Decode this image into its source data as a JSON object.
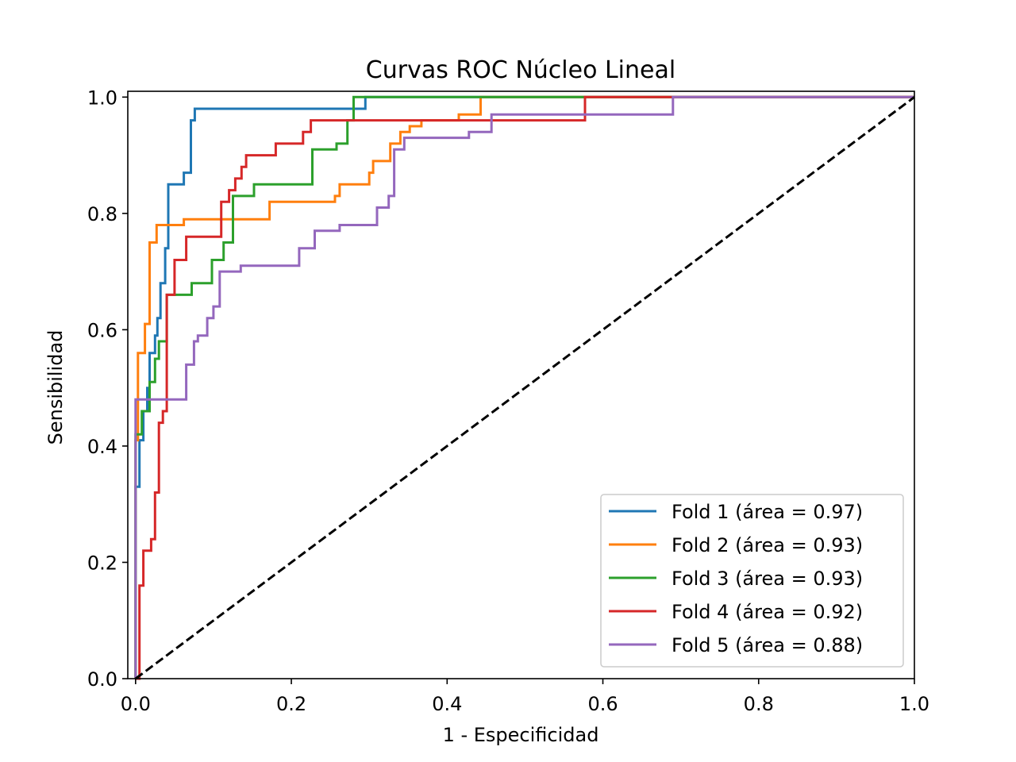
{
  "chart_data": {
    "type": "line",
    "title": "Curvas ROC Núcleo Lineal",
    "xlabel": "1 - Especificidad",
    "ylabel": "Sensibilidad",
    "xlim": [
      -0.01,
      1.0
    ],
    "ylim": [
      0.0,
      1.01
    ],
    "xticks": [
      0.0,
      0.2,
      0.4,
      0.6,
      0.8,
      1.0
    ],
    "yticks": [
      0.0,
      0.2,
      0.4,
      0.6,
      0.8,
      1.0
    ],
    "xtick_labels": [
      "0.0",
      "0.2",
      "0.4",
      "0.6",
      "0.8",
      "1.0"
    ],
    "ytick_labels": [
      "0.0",
      "0.2",
      "0.4",
      "0.6",
      "0.8",
      "1.0"
    ],
    "grid": false,
    "legend_position": "lower-right",
    "diagonal": {
      "points": [
        [
          0,
          0
        ],
        [
          1,
          1
        ]
      ],
      "color": "#000000",
      "style": "dashed"
    },
    "series": [
      {
        "name": "Fold 1 (área = 0.97)",
        "color": "#1f77b4",
        "points": [
          [
            0.0,
            0.0
          ],
          [
            0.0,
            0.33
          ],
          [
            0.005,
            0.33
          ],
          [
            0.005,
            0.41
          ],
          [
            0.01,
            0.41
          ],
          [
            0.01,
            0.46
          ],
          [
            0.015,
            0.46
          ],
          [
            0.015,
            0.5
          ],
          [
            0.018,
            0.5
          ],
          [
            0.018,
            0.56
          ],
          [
            0.025,
            0.56
          ],
          [
            0.025,
            0.59
          ],
          [
            0.028,
            0.59
          ],
          [
            0.028,
            0.62
          ],
          [
            0.032,
            0.62
          ],
          [
            0.032,
            0.68
          ],
          [
            0.038,
            0.68
          ],
          [
            0.038,
            0.74
          ],
          [
            0.042,
            0.74
          ],
          [
            0.042,
            0.85
          ],
          [
            0.062,
            0.85
          ],
          [
            0.062,
            0.87
          ],
          [
            0.071,
            0.87
          ],
          [
            0.071,
            0.96
          ],
          [
            0.076,
            0.96
          ],
          [
            0.076,
            0.98
          ],
          [
            0.295,
            0.98
          ],
          [
            0.295,
            1.0
          ],
          [
            1.0,
            1.0
          ]
        ]
      },
      {
        "name": "Fold 2 (área = 0.93)",
        "color": "#ff7f0e",
        "points": [
          [
            0.0,
            0.0
          ],
          [
            0.0,
            0.41
          ],
          [
            0.003,
            0.41
          ],
          [
            0.003,
            0.56
          ],
          [
            0.012,
            0.56
          ],
          [
            0.012,
            0.61
          ],
          [
            0.018,
            0.61
          ],
          [
            0.018,
            0.75
          ],
          [
            0.027,
            0.75
          ],
          [
            0.027,
            0.78
          ],
          [
            0.062,
            0.78
          ],
          [
            0.062,
            0.79
          ],
          [
            0.172,
            0.79
          ],
          [
            0.172,
            0.82
          ],
          [
            0.256,
            0.82
          ],
          [
            0.256,
            0.83
          ],
          [
            0.262,
            0.83
          ],
          [
            0.262,
            0.85
          ],
          [
            0.3,
            0.85
          ],
          [
            0.3,
            0.87
          ],
          [
            0.305,
            0.87
          ],
          [
            0.305,
            0.89
          ],
          [
            0.327,
            0.89
          ],
          [
            0.327,
            0.92
          ],
          [
            0.34,
            0.92
          ],
          [
            0.34,
            0.94
          ],
          [
            0.352,
            0.94
          ],
          [
            0.352,
            0.95
          ],
          [
            0.367,
            0.95
          ],
          [
            0.367,
            0.96
          ],
          [
            0.415,
            0.96
          ],
          [
            0.415,
            0.97
          ],
          [
            0.443,
            0.97
          ],
          [
            0.443,
            1.0
          ],
          [
            1.0,
            1.0
          ]
        ]
      },
      {
        "name": "Fold 3 (área = 0.93)",
        "color": "#2ca02c",
        "points": [
          [
            0.0,
            0.0
          ],
          [
            0.0,
            0.42
          ],
          [
            0.008,
            0.42
          ],
          [
            0.008,
            0.46
          ],
          [
            0.018,
            0.46
          ],
          [
            0.018,
            0.51
          ],
          [
            0.025,
            0.51
          ],
          [
            0.025,
            0.55
          ],
          [
            0.03,
            0.55
          ],
          [
            0.03,
            0.58
          ],
          [
            0.04,
            0.58
          ],
          [
            0.04,
            0.66
          ],
          [
            0.072,
            0.66
          ],
          [
            0.072,
            0.68
          ],
          [
            0.098,
            0.68
          ],
          [
            0.098,
            0.72
          ],
          [
            0.113,
            0.72
          ],
          [
            0.113,
            0.75
          ],
          [
            0.125,
            0.75
          ],
          [
            0.125,
            0.83
          ],
          [
            0.152,
            0.83
          ],
          [
            0.152,
            0.85
          ],
          [
            0.227,
            0.85
          ],
          [
            0.227,
            0.91
          ],
          [
            0.258,
            0.91
          ],
          [
            0.258,
            0.92
          ],
          [
            0.272,
            0.92
          ],
          [
            0.272,
            0.96
          ],
          [
            0.28,
            0.96
          ],
          [
            0.28,
            1.0
          ],
          [
            1.0,
            1.0
          ]
        ]
      },
      {
        "name": "Fold 4 (área = 0.92)",
        "color": "#d62728",
        "points": [
          [
            0.0,
            0.0
          ],
          [
            0.005,
            0.0
          ],
          [
            0.005,
            0.16
          ],
          [
            0.01,
            0.16
          ],
          [
            0.01,
            0.22
          ],
          [
            0.02,
            0.22
          ],
          [
            0.02,
            0.24
          ],
          [
            0.025,
            0.24
          ],
          [
            0.025,
            0.32
          ],
          [
            0.03,
            0.32
          ],
          [
            0.03,
            0.44
          ],
          [
            0.035,
            0.44
          ],
          [
            0.035,
            0.46
          ],
          [
            0.04,
            0.46
          ],
          [
            0.04,
            0.66
          ],
          [
            0.05,
            0.66
          ],
          [
            0.05,
            0.72
          ],
          [
            0.065,
            0.72
          ],
          [
            0.065,
            0.76
          ],
          [
            0.11,
            0.76
          ],
          [
            0.11,
            0.82
          ],
          [
            0.12,
            0.82
          ],
          [
            0.12,
            0.84
          ],
          [
            0.128,
            0.84
          ],
          [
            0.128,
            0.86
          ],
          [
            0.136,
            0.86
          ],
          [
            0.136,
            0.88
          ],
          [
            0.142,
            0.88
          ],
          [
            0.142,
            0.9
          ],
          [
            0.18,
            0.9
          ],
          [
            0.18,
            0.92
          ],
          [
            0.215,
            0.92
          ],
          [
            0.215,
            0.94
          ],
          [
            0.225,
            0.94
          ],
          [
            0.225,
            0.96
          ],
          [
            0.577,
            0.96
          ],
          [
            0.577,
            1.0
          ],
          [
            1.0,
            1.0
          ]
        ]
      },
      {
        "name": "Fold 5 (área = 0.88)",
        "color": "#9467bd",
        "points": [
          [
            0.0,
            0.0
          ],
          [
            0.0,
            0.48
          ],
          [
            0.065,
            0.48
          ],
          [
            0.065,
            0.54
          ],
          [
            0.075,
            0.54
          ],
          [
            0.075,
            0.58
          ],
          [
            0.08,
            0.58
          ],
          [
            0.08,
            0.59
          ],
          [
            0.092,
            0.59
          ],
          [
            0.092,
            0.62
          ],
          [
            0.1,
            0.62
          ],
          [
            0.1,
            0.64
          ],
          [
            0.108,
            0.64
          ],
          [
            0.108,
            0.7
          ],
          [
            0.135,
            0.7
          ],
          [
            0.135,
            0.71
          ],
          [
            0.21,
            0.71
          ],
          [
            0.21,
            0.74
          ],
          [
            0.23,
            0.74
          ],
          [
            0.23,
            0.77
          ],
          [
            0.262,
            0.77
          ],
          [
            0.262,
            0.78
          ],
          [
            0.31,
            0.78
          ],
          [
            0.31,
            0.81
          ],
          [
            0.325,
            0.81
          ],
          [
            0.325,
            0.83
          ],
          [
            0.332,
            0.83
          ],
          [
            0.332,
            0.91
          ],
          [
            0.345,
            0.91
          ],
          [
            0.345,
            0.93
          ],
          [
            0.428,
            0.93
          ],
          [
            0.428,
            0.94
          ],
          [
            0.457,
            0.94
          ],
          [
            0.457,
            0.97
          ],
          [
            0.69,
            0.97
          ],
          [
            0.69,
            1.0
          ],
          [
            1.0,
            1.0
          ]
        ]
      }
    ]
  }
}
